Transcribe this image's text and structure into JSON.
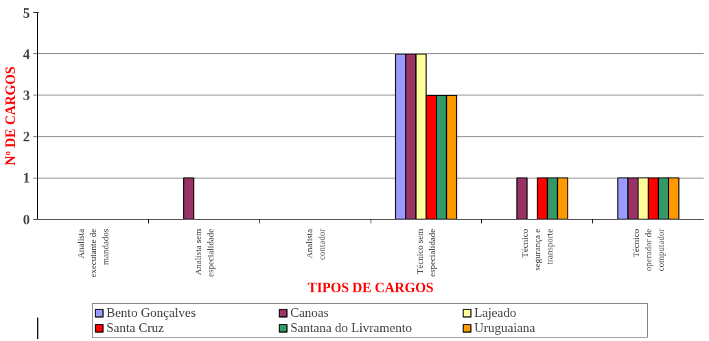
{
  "chart_data": {
    "type": "bar",
    "xlabel": "TIPOS DE CARGOS",
    "ylabel": "Nº DE CARGOS",
    "categories": [
      "Analista executante de mandados",
      "Analista sem especialidade",
      "Analista contador",
      "Técnico sem especialidade",
      "Técnico segurança e transporte",
      "Técnico operador de computador"
    ],
    "series": [
      {
        "name": "Bento Gonçalves",
        "color": "#9999ff",
        "values": [
          0,
          0,
          0,
          4,
          0,
          1
        ]
      },
      {
        "name": "Canoas",
        "color": "#993366",
        "values": [
          0,
          1,
          0,
          4,
          1,
          1
        ]
      },
      {
        "name": "Lajeado",
        "color": "#ffff99",
        "values": [
          0,
          0,
          0,
          4,
          0,
          1
        ]
      },
      {
        "name": "Santa Cruz",
        "color": "#ff0000",
        "values": [
          0,
          0,
          0,
          3,
          1,
          1
        ]
      },
      {
        "name": "Santana do Livramento",
        "color": "#339966",
        "values": [
          0,
          0,
          0,
          3,
          1,
          1
        ]
      },
      {
        "name": "Uruguaiana",
        "color": "#ff9900",
        "values": [
          0,
          0,
          0,
          3,
          1,
          1
        ]
      }
    ],
    "ylim": [
      0,
      5
    ],
    "yticks": [
      0,
      1,
      2,
      3,
      4,
      5
    ],
    "grid": "y",
    "legend": "bottom"
  }
}
